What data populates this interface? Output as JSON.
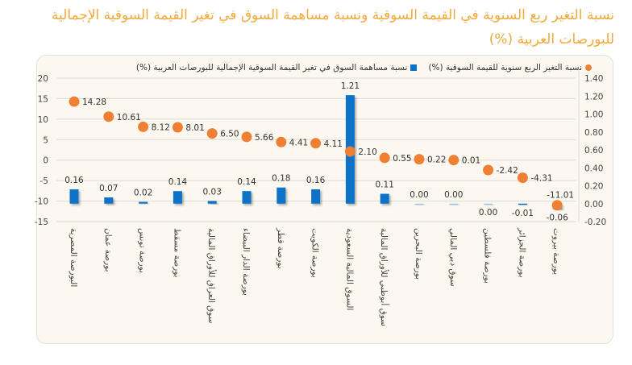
{
  "title": "نسبة التغير ربع السنوية في القيمة السوقية ونسبة مساهمة السوق في تغير القيمة السوقية الإجمالية للبورصات العربية (%)",
  "colors": {
    "title": "#f2a93b",
    "dots": "#ee7f33",
    "bars": "#0b73c9",
    "background": "#fcf8f0"
  },
  "chart_data": {
    "type": "bar+scatter",
    "legend_position": "top",
    "grid": true,
    "categories": [
      "البورصة المصرية",
      "بورصة عمان",
      "بورصة تونس",
      "بورصة مسقط",
      "سوق العراق للأوراق المالية",
      "بورصة الدار البيضاء",
      "بورصة قطر",
      "بورصة الكويت",
      "السوق المالية السعودية",
      "سوق أبوظبي للأوراق المالية",
      "بورصة البحرين",
      "سوق دبي المالي",
      "بورصة فلسطين",
      "بورصة الجزائر",
      "بورصة بيروت"
    ],
    "series": [
      {
        "name": "نسبة التغير الربع سنوية للقيمة السوقية (%)",
        "type": "scatter",
        "axis": "left",
        "values": [
          14.28,
          10.61,
          8.12,
          8.01,
          6.5,
          5.66,
          4.41,
          4.11,
          2.1,
          0.55,
          0.22,
          0.01,
          -2.42,
          -4.31,
          -11.01
        ],
        "labels": [
          "14.28",
          "10.61",
          "8.12",
          "8.01",
          "6.50",
          "5.66",
          "4.41",
          "4.11",
          "2.10",
          "0.55",
          "0.22",
          "0.01",
          "-2.42",
          "-4.31",
          "-11.01"
        ]
      },
      {
        "name": "نسبة مساهمة السوق في تغير القيمة السوقية الإجمالية للبورصات العربية (%)",
        "type": "bar",
        "axis": "right",
        "values": [
          0.16,
          0.07,
          0.02,
          0.14,
          0.03,
          0.14,
          0.18,
          0.16,
          1.21,
          0.11,
          0.0,
          0.0,
          0.0,
          -0.01,
          -0.06
        ],
        "labels": [
          "0.16",
          "0.07",
          "0.02",
          "0.14",
          "0.03",
          "0.14",
          "0.18",
          "0.16",
          "1.21",
          "0.11",
          "0.00",
          "0.00",
          "0.00",
          "-0.01",
          "-0.06"
        ]
      }
    ],
    "left_axis": {
      "ylim": [
        -15,
        20
      ],
      "ticks": [
        "20",
        "15",
        "10",
        "5",
        "0",
        "-5",
        "-10",
        "-15"
      ]
    },
    "right_axis": {
      "ylim": [
        -0.2,
        1.4
      ],
      "ticks": [
        "1.40",
        "1.20",
        "1.00",
        "0.80",
        "0.60",
        "0.40",
        "0.20",
        "0.00",
        "-0.20"
      ]
    }
  }
}
